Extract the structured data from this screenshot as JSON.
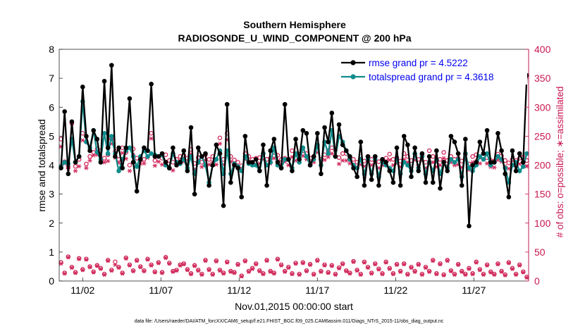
{
  "chart_data": {
    "type": "line",
    "title": "Southern Hemisphere",
    "subtitle": "RADIOSONDE_U_WIND_COMPONENT @ 200 hPa",
    "xlabel": "Nov.01,2015 00:00:00 start",
    "ylabel_left": "rmse and totalspread",
    "ylabel_right": "# of obs: o=possible; ∗=assimilated",
    "footnote": "data file: /Users/raeder/DAI/ATM_forcXX/CAM6_setup/f.e21.FHIST_BGC.f09_025.CAM6assim.011/Diags_NTrS_2015-11/obs_diag_output.nc",
    "x_range": [
      0.5,
      30.5
    ],
    "ylim_left": [
      0,
      8
    ],
    "ylim_right": [
      0,
      400
    ],
    "yticks_left": [
      "0",
      "1",
      "2",
      "3",
      "4",
      "5",
      "6",
      "7",
      "8"
    ],
    "yticks_right": [
      "0",
      "50",
      "100",
      "150",
      "200",
      "250",
      "300",
      "350",
      "400"
    ],
    "xticks": [
      {
        "day": 2,
        "label": "11/02"
      },
      {
        "day": 7,
        "label": "11/07"
      },
      {
        "day": 12,
        "label": "11/12"
      },
      {
        "day": 17,
        "label": "11/17"
      },
      {
        "day": 22,
        "label": "11/22"
      },
      {
        "day": 27,
        "label": "11/27"
      }
    ],
    "colors": {
      "rmse": "#000000",
      "spread": "#108c8c",
      "obs": "#d0285a",
      "right_axis": "#c8174f",
      "legend_text": "#0000ee"
    },
    "series": [
      {
        "name": "rmse grand pr = 4.5222",
        "key": "rmse",
        "values": [
          3.9,
          5.85,
          3.7,
          5.5,
          4.1,
          4.3,
          6.7,
          5.0,
          4.5,
          5.2,
          4.9,
          4.1,
          6.9,
          4.6,
          7.45,
          4.3,
          4.6,
          3.9,
          4.6,
          6.3,
          4.1,
          3.1,
          4.2,
          4.6,
          4.5,
          6.8,
          4.3,
          4.3,
          4.4,
          4.1,
          3.9,
          4.6,
          4.0,
          4.1,
          4.5,
          3.8,
          5.3,
          3.0,
          4.6,
          4.3,
          4.4,
          3.3,
          4.0,
          4.7,
          4.4,
          2.6,
          6.1,
          3.4,
          4.0,
          3.9,
          2.9,
          5.0,
          4.1,
          4.1,
          4.2,
          3.8,
          4.7,
          3.3,
          4.5,
          4.9,
          4.1,
          3.9,
          6.1,
          4.2,
          3.8,
          4.9,
          4.2,
          5.2,
          5.1,
          4.0,
          4.3,
          5.1,
          3.7,
          5.3,
          4.8,
          5.8,
          4.3,
          5.4,
          4.7,
          4.5,
          4.3,
          3.9,
          3.6,
          4.8,
          3.3,
          4.3,
          3.5,
          4.3,
          3.3,
          4.2,
          4.1,
          3.8,
          3.4,
          4.6,
          3.3,
          5.0,
          4.7,
          3.6,
          4.6,
          3.8,
          4.4,
          3.4,
          4.3,
          3.4,
          4.5,
          3.2,
          4.1,
          3.8,
          5.0,
          4.8,
          4.4,
          3.3,
          4.9,
          1.9,
          4.0,
          4.1,
          4.8,
          4.4,
          5.2,
          4.1,
          4.1,
          5.1,
          4.5,
          3.7,
          2.9,
          4.5,
          3.8,
          4.4,
          4.1,
          7.1
        ]
      },
      {
        "name": "totalspread grand pr = 4.3618",
        "key": "spread",
        "values": [
          3.95,
          4.1,
          4.05,
          4.9,
          4.1,
          4.3,
          6.2,
          4.8,
          4.6,
          5.2,
          4.45,
          4.2,
          5.1,
          4.4,
          5.0,
          4.4,
          3.8,
          4.2,
          4.5,
          4.6,
          4.3,
          3.95,
          4.3,
          4.5,
          4.3,
          4.4,
          4.35,
          4.3,
          4.35,
          4.0,
          3.9,
          4.4,
          4.1,
          4.05,
          4.2,
          3.9,
          4.3,
          3.7,
          4.1,
          4.3,
          4.0,
          3.4,
          4.0,
          4.2,
          4.5,
          3.7,
          4.5,
          3.7,
          4.05,
          3.95,
          3.8,
          4.3,
          4.05,
          4.0,
          4.0,
          3.8,
          4.4,
          4.0,
          4.1,
          4.6,
          4.0,
          3.9,
          4.2,
          4.2,
          3.9,
          4.4,
          4.1,
          4.6,
          4.3,
          4.0,
          4.2,
          4.7,
          4.0,
          4.8,
          4.4,
          5.2,
          4.3,
          5.0,
          4.8,
          4.5,
          4.2,
          4.0,
          3.9,
          4.2,
          3.7,
          4.2,
          3.7,
          4.2,
          3.6,
          4.1,
          4.0,
          3.9,
          3.8,
          4.2,
          3.7,
          4.1,
          4.0,
          3.8,
          4.4,
          3.9,
          4.3,
          3.7,
          4.1,
          3.8,
          4.2,
          3.7,
          4.1,
          3.9,
          4.2,
          4.1,
          4.2,
          3.6,
          4.4,
          3.9,
          3.8,
          4.0,
          4.3,
          4.2,
          4.4,
          4.0,
          4.1,
          4.3,
          4.2,
          3.9,
          3.4,
          4.0,
          4.1,
          3.8,
          3.95,
          4.4
        ]
      }
    ],
    "obs_possible_high": [
      245,
      206,
      197,
      272,
      198,
      210,
      255,
      202,
      215,
      222,
      228,
      225,
      212,
      218,
      245,
      224,
      210,
      230,
      222,
      200,
      228,
      212,
      209,
      210,
      225,
      255,
      208,
      215,
      212,
      218,
      208,
      205,
      210,
      215,
      217,
      212,
      227,
      203,
      213,
      205,
      218,
      210,
      215,
      210,
      247,
      210,
      255,
      215,
      209,
      205,
      199,
      220,
      215,
      210,
      212,
      213,
      220,
      210,
      212,
      222,
      217,
      210,
      212,
      210,
      225,
      218,
      219,
      225,
      220,
      212,
      215,
      232,
      210,
      218,
      225,
      230,
      226,
      213,
      220,
      220,
      212,
      210,
      205,
      210,
      207,
      215,
      210,
      215,
      206,
      210,
      212,
      219,
      210,
      213,
      207,
      220,
      215,
      208,
      219,
      210,
      218,
      205,
      225,
      215,
      207,
      210,
      222,
      208,
      215,
      210,
      212,
      207,
      219,
      202,
      215,
      218,
      214,
      220,
      213,
      208,
      207,
      219,
      216,
      208,
      204,
      210,
      208,
      212,
      214,
      208
    ],
    "obs_assimilated_high": [
      232,
      203,
      194,
      275,
      190,
      198,
      243,
      195,
      208,
      217,
      218,
      214,
      205,
      207,
      237,
      213,
      204,
      221,
      211,
      190,
      218,
      200,
      203,
      203,
      213,
      246,
      199,
      206,
      201,
      206,
      196,
      191,
      202,
      207,
      206,
      200,
      219,
      193,
      204,
      197,
      208,
      201,
      205,
      201,
      237,
      201,
      244,
      206,
      200,
      196,
      192,
      210,
      205,
      201,
      201,
      203,
      210,
      200,
      203,
      212,
      206,
      201,
      206,
      200,
      214,
      208,
      209,
      216,
      210,
      202,
      205,
      222,
      199,
      209,
      214,
      220,
      216,
      202,
      208,
      208,
      203,
      200,
      196,
      201,
      198,
      206,
      200,
      206,
      195,
      200,
      201,
      209,
      200,
      203,
      197,
      210,
      205,
      196,
      209,
      200,
      208,
      195,
      214,
      205,
      197,
      200,
      212,
      198,
      205,
      200,
      201,
      196,
      209,
      192,
      205,
      207,
      203,
      210,
      203,
      197,
      196,
      209,
      206,
      198,
      194,
      200,
      198,
      202,
      204,
      198
    ],
    "obs_possible_low": [
      32,
      14,
      42,
      24,
      15,
      39,
      20,
      38,
      25,
      16,
      27,
      22,
      12,
      36,
      19,
      33,
      24,
      14,
      40,
      28,
      18,
      36,
      25,
      18,
      38,
      28,
      16,
      32,
      15,
      41,
      31,
      17,
      19,
      28,
      30,
      20,
      13,
      27,
      19,
      12,
      36,
      20,
      12,
      35,
      19,
      14,
      33,
      17,
      15,
      29,
      9,
      35,
      17,
      22,
      30,
      18,
      13,
      36,
      17,
      14,
      38,
      28,
      17,
      24,
      13,
      31,
      12,
      32,
      18,
      29,
      12,
      36,
      17,
      28,
      15,
      27,
      12,
      23,
      30,
      18,
      14,
      34,
      19,
      12,
      33,
      24,
      14,
      30,
      21,
      13,
      33,
      22,
      13,
      29,
      17,
      30,
      12,
      24,
      17,
      29,
      12,
      24,
      17,
      36,
      13,
      30,
      11,
      36,
      18,
      12,
      29,
      17,
      12,
      22,
      13,
      33,
      20,
      12,
      28,
      16,
      12,
      30,
      17,
      11,
      32,
      22,
      12,
      28,
      16,
      7
    ],
    "obs_assimilated_low": [
      30,
      13,
      41,
      23,
      14,
      38,
      19,
      37,
      24,
      15,
      26,
      21,
      11,
      35,
      18,
      28,
      23,
      13,
      39,
      27,
      17,
      35,
      24,
      17,
      37,
      27,
      15,
      31,
      14,
      40,
      30,
      16,
      18,
      27,
      29,
      19,
      12,
      26,
      18,
      11,
      35,
      19,
      11,
      34,
      18,
      13,
      32,
      16,
      14,
      28,
      8,
      34,
      16,
      21,
      29,
      17,
      12,
      35,
      16,
      13,
      37,
      27,
      16,
      23,
      12,
      30,
      11,
      31,
      17,
      28,
      11,
      35,
      16,
      27,
      14,
      26,
      11,
      22,
      29,
      17,
      13,
      33,
      18,
      11,
      32,
      23,
      13,
      29,
      20,
      12,
      32,
      21,
      12,
      28,
      16,
      29,
      11,
      23,
      16,
      28,
      11,
      23,
      16,
      35,
      12,
      29,
      10,
      35,
      17,
      11,
      28,
      16,
      11,
      21,
      12,
      32,
      19,
      11,
      27,
      15,
      11,
      29,
      16,
      10,
      31,
      21,
      11,
      27,
      15,
      6
    ]
  }
}
